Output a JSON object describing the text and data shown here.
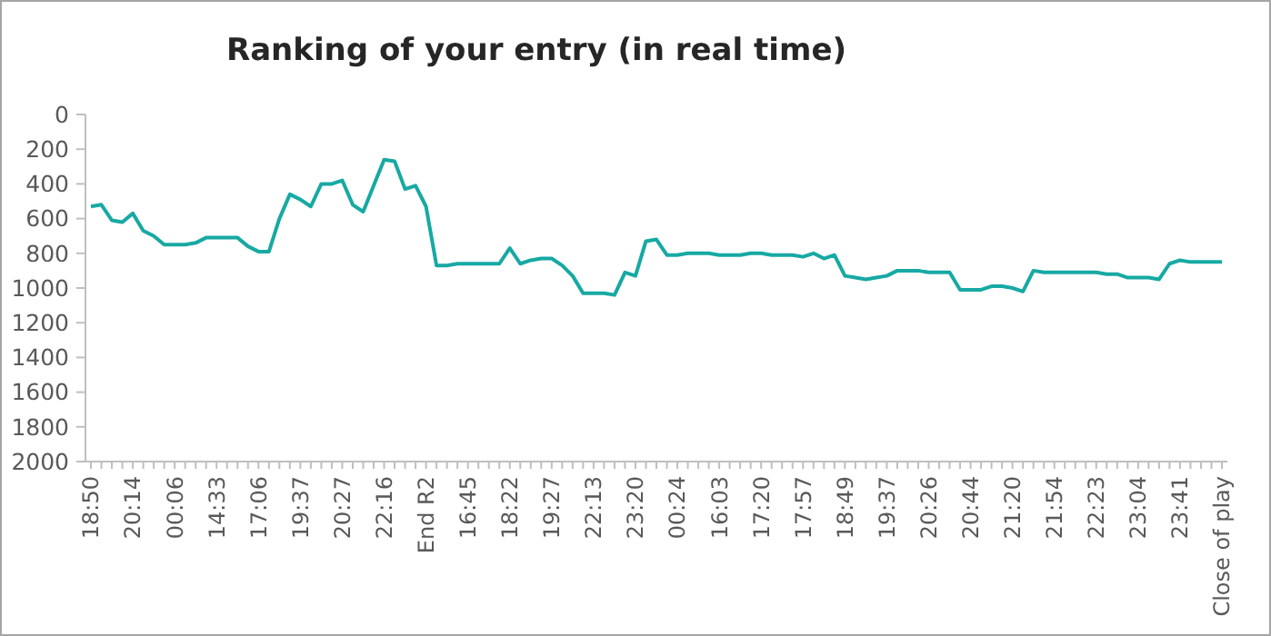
{
  "chart_data": {
    "type": "line",
    "title": "Ranking of your entry (in real time)",
    "categories": [
      "18:50",
      null,
      null,
      null,
      "20:14",
      null,
      null,
      null,
      "00:06",
      null,
      null,
      null,
      "14:33",
      null,
      null,
      null,
      "17:06",
      null,
      null,
      null,
      "19:37",
      null,
      null,
      null,
      "20:27",
      null,
      null,
      null,
      "22:16",
      null,
      null,
      null,
      "End R2",
      null,
      null,
      null,
      "16:45",
      null,
      null,
      null,
      "18:22",
      null,
      null,
      null,
      "19:27",
      null,
      null,
      null,
      "22:13",
      null,
      null,
      null,
      "23:20",
      null,
      null,
      null,
      "00:24",
      null,
      null,
      null,
      "16:03",
      null,
      null,
      null,
      "17:20",
      null,
      null,
      null,
      "17:57",
      null,
      null,
      null,
      "18:49",
      null,
      null,
      null,
      "19:37",
      null,
      null,
      null,
      "20:26",
      null,
      null,
      null,
      "20:44",
      null,
      null,
      null,
      "21:20",
      null,
      null,
      null,
      "21:54",
      null,
      null,
      null,
      "22:23",
      null,
      null,
      null,
      "23:04",
      null,
      null,
      null,
      "23:41",
      null,
      null,
      null,
      "Close of play"
    ],
    "series": [
      {
        "color": "#17a9a3",
        "values": [
          530,
          520,
          610,
          620,
          570,
          670,
          700,
          750,
          750,
          750,
          740,
          710,
          710,
          710,
          710,
          760,
          790,
          790,
          600,
          460,
          490,
          530,
          400,
          400,
          380,
          520,
          560,
          410,
          260,
          270,
          430,
          410,
          530,
          870,
          870,
          860,
          860,
          860,
          860,
          860,
          770,
          860,
          840,
          830,
          830,
          870,
          930,
          1030,
          1030,
          1030,
          1040,
          910,
          930,
          730,
          720,
          810,
          810,
          800,
          800,
          800,
          810,
          810,
          810,
          800,
          800,
          810,
          810,
          810,
          820,
          800,
          830,
          810,
          930,
          940,
          950,
          940,
          930,
          900,
          900,
          900,
          910,
          910,
          910,
          1010,
          1010,
          1010,
          990,
          990,
          1000,
          1020,
          900,
          910,
          910,
          910,
          910,
          910,
          910,
          920,
          920,
          940,
          940,
          940,
          950,
          860,
          840,
          850,
          850,
          850,
          850
        ]
      }
    ],
    "ylim": [
      2000,
      0
    ],
    "yticks": [
      0,
      200,
      400,
      600,
      800,
      1000,
      1200,
      1400,
      1600,
      1800,
      2000
    ],
    "grid": false,
    "marker": "none",
    "line_style": "solid"
  }
}
